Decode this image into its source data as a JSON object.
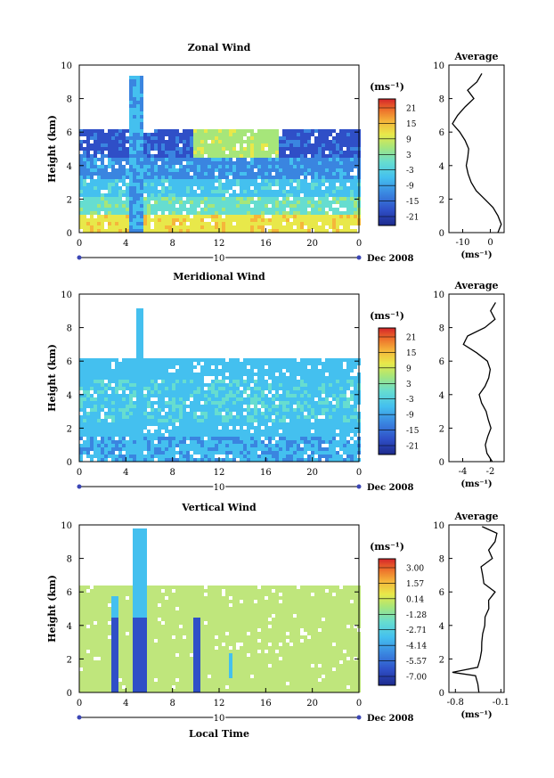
{
  "charts": [
    {
      "title": "Zonal Wind",
      "ylabel": "Height (km)",
      "yticks": [
        "0",
        "2",
        "4",
        "6",
        "8",
        "10"
      ],
      "xticks": [
        "0",
        "4",
        "8",
        "12",
        "16",
        "20",
        "0"
      ],
      "date_tick": "10",
      "date_label": "Dec 2008",
      "unit": "(ms⁻¹)",
      "cb_ticks": [
        "21",
        "15",
        "9",
        "3",
        "-3",
        "-9",
        "-15",
        "-21"
      ],
      "avg_title": "Average",
      "avg_xticks": [
        "-10",
        "0"
      ],
      "avg_yticks": [
        "0",
        "2",
        "4",
        "6",
        "8",
        "10"
      ],
      "avg_unit": "(ms⁻¹)"
    },
    {
      "title": "Meridional Wind",
      "ylabel": "Height (km)",
      "yticks": [
        "0",
        "2",
        "4",
        "6",
        "8",
        "10"
      ],
      "xticks": [
        "0",
        "4",
        "8",
        "12",
        "16",
        "20",
        "0"
      ],
      "date_tick": "10",
      "date_label": "Dec 2008",
      "unit": "(ms⁻¹)",
      "cb_ticks": [
        "21",
        "15",
        "9",
        "3",
        "-3",
        "-9",
        "-15",
        "-21"
      ],
      "avg_title": "Average",
      "avg_xticks": [
        "-4",
        "-2"
      ],
      "avg_yticks": [
        "0",
        "2",
        "4",
        "6",
        "8",
        "10"
      ],
      "avg_unit": "(ms⁻¹)"
    },
    {
      "title": "Vertical Wind",
      "ylabel": "Height (km)",
      "yticks": [
        "0",
        "2",
        "4",
        "6",
        "8",
        "10"
      ],
      "xticks": [
        "0",
        "4",
        "8",
        "12",
        "16",
        "20",
        "0"
      ],
      "date_tick": "10",
      "date_label": "Dec 2008",
      "unit": "(ms⁻¹)",
      "cb_ticks": [
        "3.00",
        "1.57",
        "0.14",
        "-1.28",
        "-2.71",
        "-4.14",
        "-5.57",
        "-7.00"
      ],
      "avg_title": "Average",
      "avg_xticks": [
        "-0.8",
        "-0.1"
      ],
      "avg_yticks": [
        "0",
        "2",
        "4",
        "6",
        "8",
        "10"
      ],
      "avg_unit": "(ms⁻¹)",
      "xlabel": "Local Time"
    }
  ],
  "chart_data": [
    {
      "type": "heatmap",
      "title": "Zonal Wind",
      "x_range_hours": [
        0,
        24
      ],
      "y_range_km": [
        0,
        10
      ],
      "color_range": [
        -21,
        21
      ],
      "colors": [
        "#1d2a8c",
        "#2f4fc7",
        "#3a85e0",
        "#44c0ef",
        "#66ddd0",
        "#a6e67a",
        "#e8e84a",
        "#f5b63a",
        "#ec6b2a",
        "#d4262a"
      ],
      "profile": {
        "height_km": [
          0,
          0.5,
          1,
          1.5,
          2,
          2.5,
          3,
          3.5,
          4,
          4.5,
          5,
          5.5,
          6,
          6.5,
          7,
          7.5,
          8,
          8.5,
          9,
          9.5
        ],
        "value": [
          3,
          4,
          3,
          1,
          -2,
          -5,
          -7,
          -8,
          -9,
          -8,
          -8,
          -9,
          -11,
          -14,
          -12,
          -9,
          -6,
          -8,
          -5,
          -3
        ],
        "xlim": [
          -15,
          5
        ]
      }
    },
    {
      "type": "heatmap",
      "title": "Meridional Wind",
      "x_range_hours": [
        0,
        24
      ],
      "y_range_km": [
        0,
        10
      ],
      "color_range": [
        -21,
        21
      ],
      "colors": [
        "#1d2a8c",
        "#2f4fc7",
        "#3a85e0",
        "#44c0ef",
        "#66ddd0",
        "#a6e67a",
        "#e8e84a",
        "#f5b63a",
        "#ec6b2a",
        "#d4262a"
      ],
      "profile": {
        "height_km": [
          0,
          0.5,
          1,
          1.5,
          2,
          2.5,
          3,
          3.5,
          4,
          4.5,
          5,
          5.5,
          6,
          6.5,
          7,
          7.5,
          8,
          8.5,
          9,
          9.5
        ],
        "value": [
          -1.8,
          -2.2,
          -2.4,
          -2.2,
          -2.0,
          -2.1,
          -2.3,
          -2.6,
          -2.8,
          -2.4,
          -2.1,
          -2.0,
          -2.2,
          -3.0,
          -3.9,
          -3.6,
          -2.4,
          -1.6,
          -2.0,
          -1.6
        ],
        "xlim": [
          -5,
          -1
        ]
      }
    },
    {
      "type": "heatmap",
      "title": "Vertical Wind",
      "x_range_hours": [
        0,
        24
      ],
      "y_range_km": [
        0,
        10
      ],
      "color_range": [
        -7,
        3
      ],
      "colors": [
        "#1d2a8c",
        "#2f4fc7",
        "#3a85e0",
        "#44c0ef",
        "#66ddd0",
        "#a6e67a",
        "#e8e84a",
        "#f5b63a",
        "#ec6b2a",
        "#d4262a"
      ],
      "profile": {
        "height_km": [
          0,
          0.5,
          1,
          1.2,
          1.5,
          2,
          2.5,
          3,
          3.5,
          4,
          4.5,
          5,
          5.5,
          6,
          6.5,
          7,
          7.5,
          8,
          8.5,
          9,
          9.5,
          9.9
        ],
        "value": [
          -0.45,
          -0.45,
          -0.5,
          -0.85,
          -0.45,
          -0.42,
          -0.4,
          -0.4,
          -0.38,
          -0.36,
          -0.34,
          -0.3,
          -0.28,
          -0.2,
          -0.35,
          -0.38,
          -0.4,
          -0.22,
          -0.3,
          -0.18,
          -0.15,
          -0.4
        ],
        "xlim": [
          -0.9,
          -0.05
        ]
      }
    }
  ]
}
